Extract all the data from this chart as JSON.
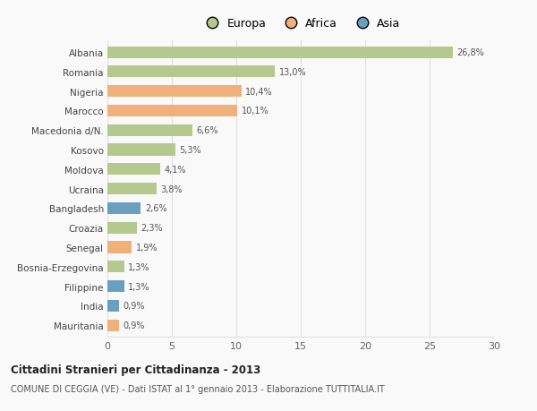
{
  "countries": [
    "Albania",
    "Romania",
    "Nigeria",
    "Marocco",
    "Macedonia d/N.",
    "Kosovo",
    "Moldova",
    "Ucraina",
    "Bangladesh",
    "Croazia",
    "Senegal",
    "Bosnia-Erzegovina",
    "Filippine",
    "India",
    "Mauritania"
  ],
  "values": [
    26.8,
    13.0,
    10.4,
    10.1,
    6.6,
    5.3,
    4.1,
    3.8,
    2.6,
    2.3,
    1.9,
    1.3,
    1.3,
    0.9,
    0.9
  ],
  "labels": [
    "26,8%",
    "13,0%",
    "10,4%",
    "10,1%",
    "6,6%",
    "5,3%",
    "4,1%",
    "3,8%",
    "2,6%",
    "2,3%",
    "1,9%",
    "1,3%",
    "1,3%",
    "0,9%",
    "0,9%"
  ],
  "continents": [
    "Europa",
    "Europa",
    "Africa",
    "Africa",
    "Europa",
    "Europa",
    "Europa",
    "Europa",
    "Asia",
    "Europa",
    "Africa",
    "Europa",
    "Asia",
    "Asia",
    "Africa"
  ],
  "colors": {
    "Europa": "#b5c98e",
    "Africa": "#f0b07a",
    "Asia": "#6a9fc0"
  },
  "xlim": [
    0,
    30
  ],
  "xticks": [
    0,
    5,
    10,
    15,
    20,
    25,
    30
  ],
  "title": "Cittadini Stranieri per Cittadinanza - 2013",
  "subtitle": "COMUNE DI CEGGIA (VE) - Dati ISTAT al 1° gennaio 2013 - Elaborazione TUTTITALIA.IT",
  "background_color": "#f9f9f9",
  "grid_color": "#e0e0e0",
  "bar_height": 0.6
}
